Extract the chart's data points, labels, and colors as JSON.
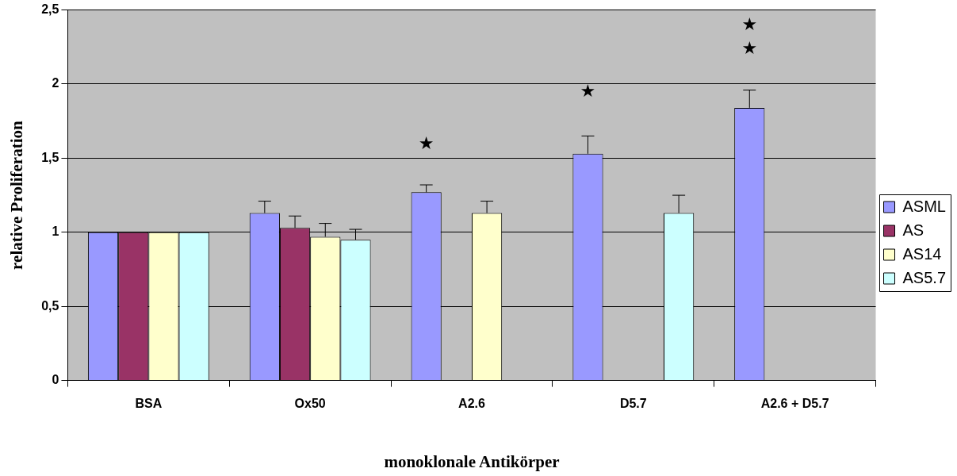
{
  "chart_data": {
    "type": "bar",
    "xlabel": "monoklonale Antikörper",
    "ylabel": "relative Proliferation",
    "categories": [
      "BSA",
      "Ox50",
      "A2.6",
      "D5.7",
      "A2.6 + D5.7"
    ],
    "series": [
      {
        "name": "ASML",
        "color": "#9999ff",
        "values": [
          1,
          1.13,
          1.27,
          1.53,
          1.84
        ],
        "errors": [
          null,
          [
            1.13,
            1.21
          ],
          [
            1.27,
            1.32
          ],
          [
            1.53,
            1.65
          ],
          [
            1.84,
            1.96
          ]
        ]
      },
      {
        "name": "AS",
        "color": "#993366",
        "values": [
          1,
          1.03,
          null,
          null,
          null
        ],
        "errors": [
          null,
          [
            1.03,
            1.11
          ],
          null,
          null,
          null
        ]
      },
      {
        "name": "AS14",
        "color": "#ffffcc",
        "values": [
          1,
          0.97,
          1.13,
          null,
          null
        ],
        "errors": [
          null,
          [
            0.97,
            1.06
          ],
          [
            1.13,
            1.21
          ],
          null,
          null
        ]
      },
      {
        "name": "AS5.7",
        "color": "#ccffff",
        "values": [
          1,
          0.95,
          null,
          1.13,
          null
        ],
        "errors": [
          null,
          [
            0.95,
            1.02
          ],
          null,
          [
            1.13,
            1.25
          ],
          null
        ]
      }
    ],
    "ylim": [
      0,
      2.5
    ],
    "yticks": [
      0,
      {
        "value": 0.5,
        "label": "0,5"
      },
      1,
      {
        "value": 1.5,
        "label": "1,5"
      },
      2,
      {
        "value": 2.5,
        "label": "2,5"
      }
    ],
    "grid": "y",
    "legend": "right",
    "annotations": [
      "★",
      "★",
      "★",
      "★"
    ]
  }
}
